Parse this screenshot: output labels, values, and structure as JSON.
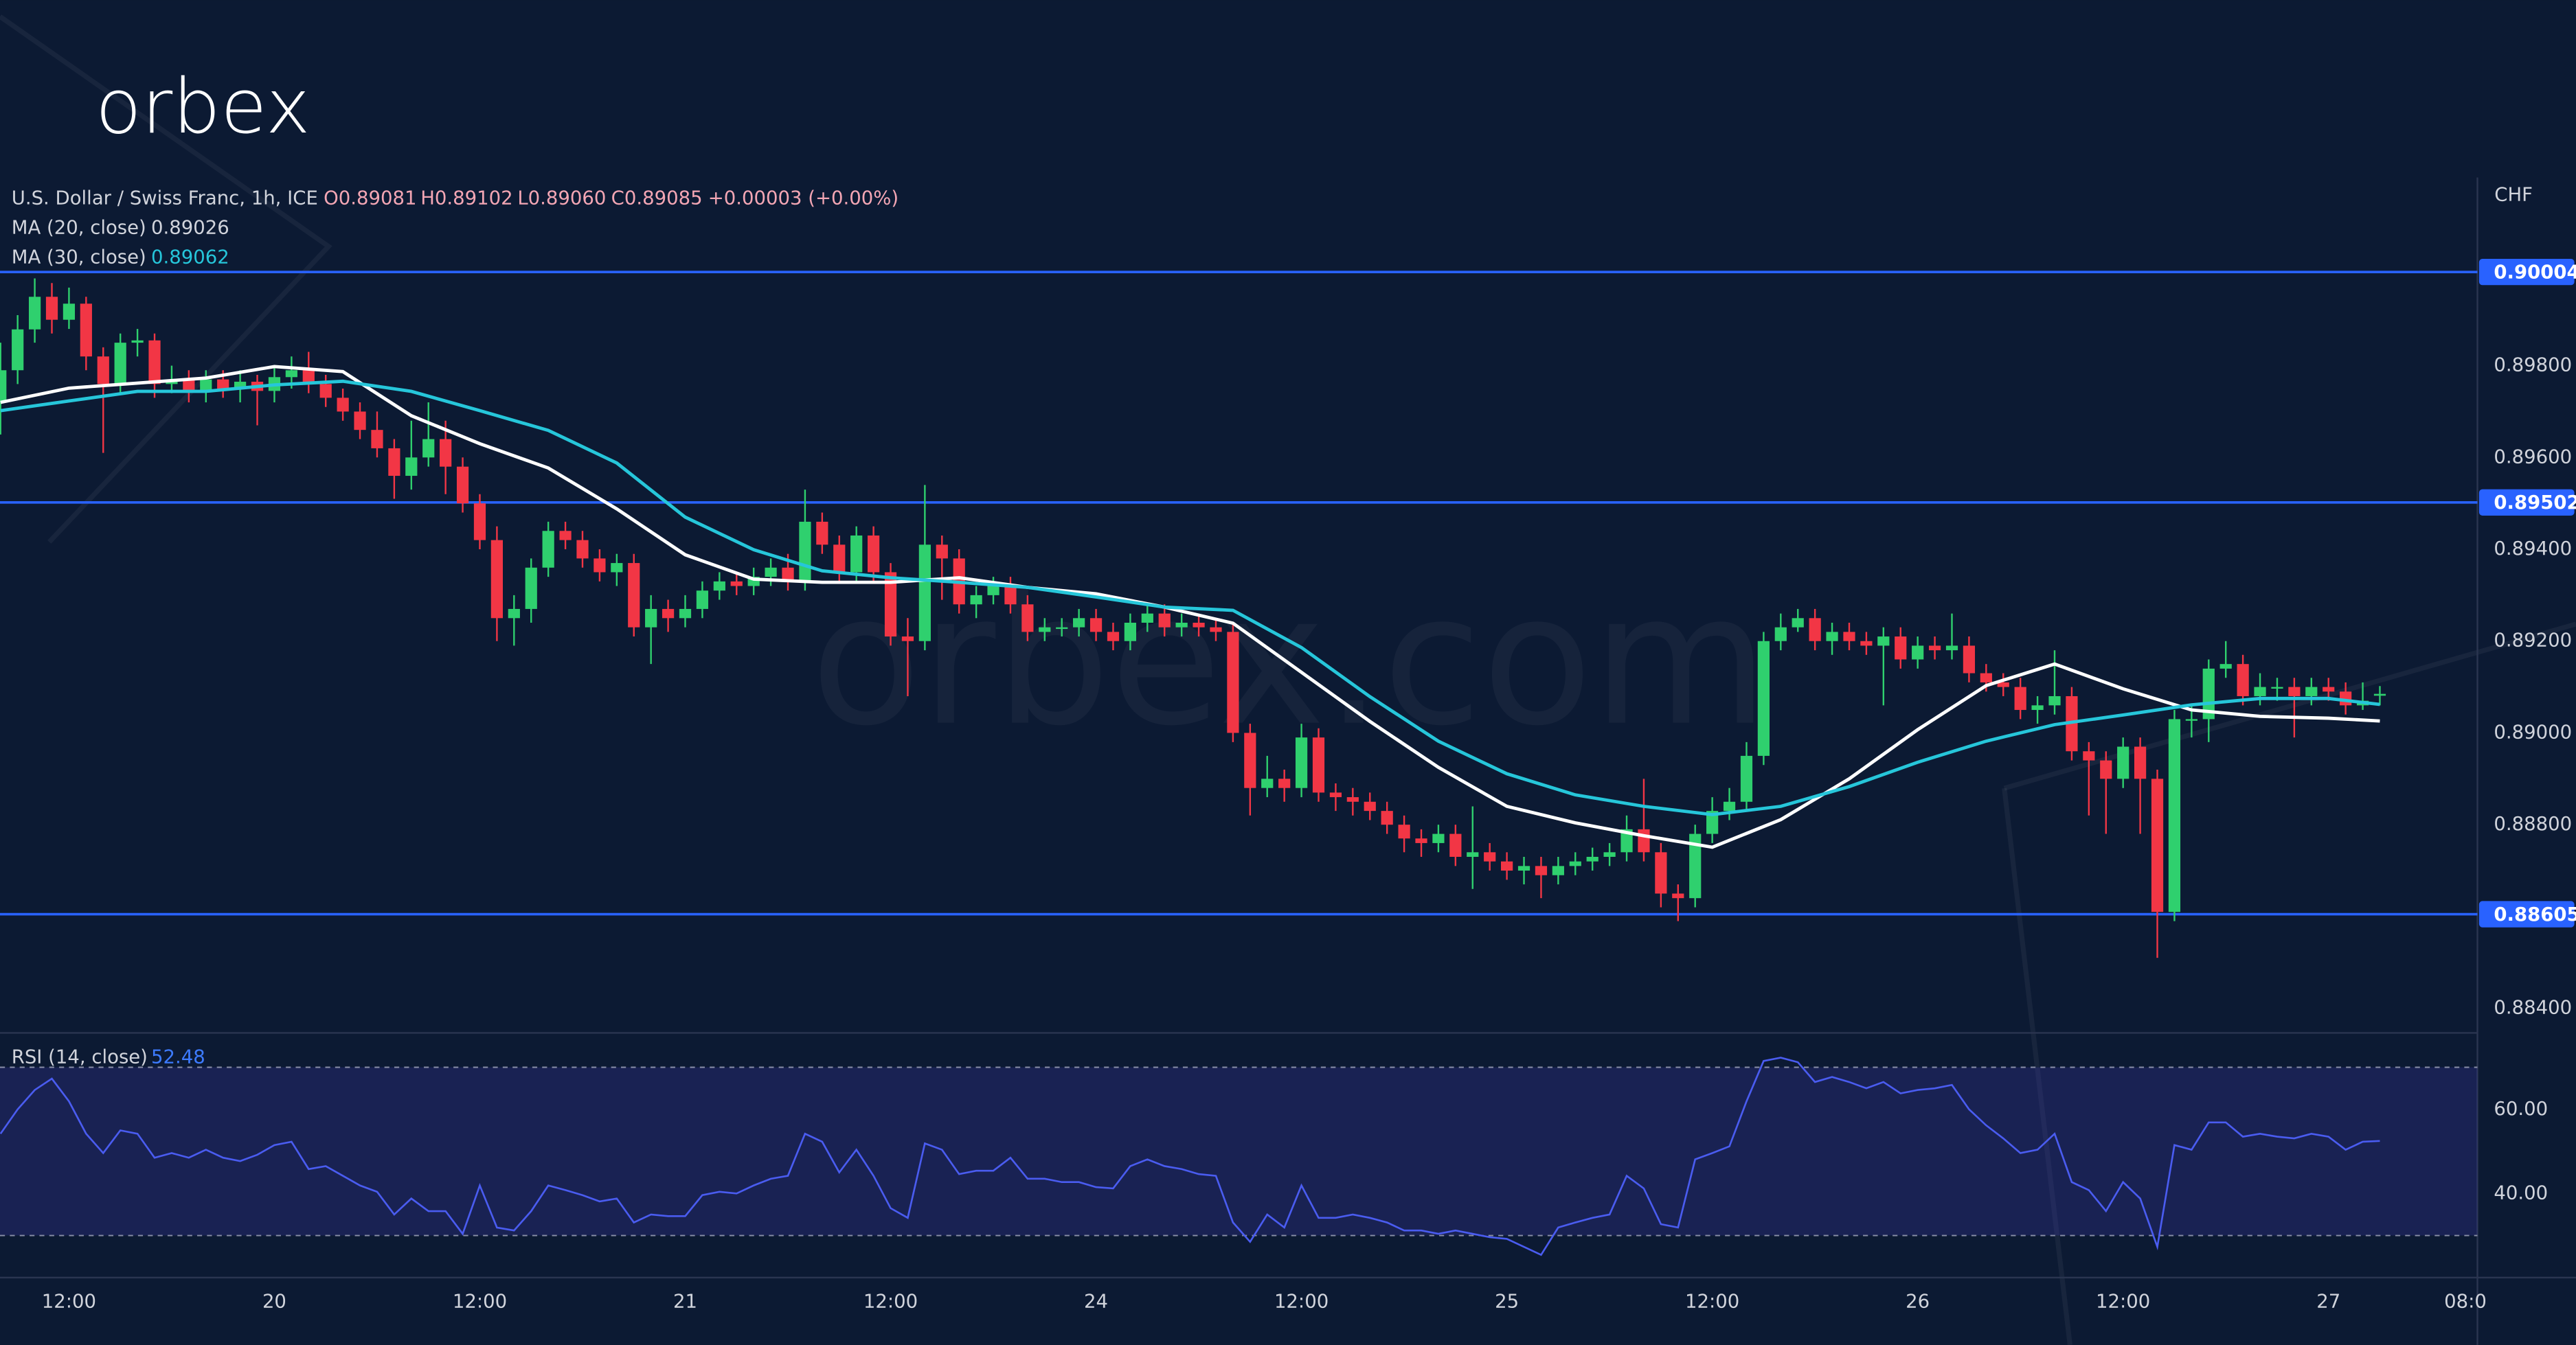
{
  "header": {
    "logo": "orbex",
    "watermark": "orbex.com"
  },
  "chart_data": {
    "type": "candlestick",
    "title": "U.S. Dollar / Swiss Franc, 1h, ICE",
    "ohlc_legend": [
      "O0.89081",
      "H0.89102",
      "L0.89060",
      "C0.89085",
      "+0.00003 (+0.00%)"
    ],
    "currency": "CHF",
    "up_color": "#2fd06e",
    "down_color": "#f23645",
    "xlim": [
      -0.03,
      144.7
    ],
    "xticks": [
      {
        "value": 4,
        "label": "12:00"
      },
      {
        "value": 16,
        "label": "20"
      },
      {
        "value": 28,
        "label": "12:00"
      },
      {
        "value": 40,
        "label": "21"
      },
      {
        "value": 52,
        "label": "12:00"
      },
      {
        "value": 64,
        "label": "24"
      },
      {
        "value": 76,
        "label": "12:00"
      },
      {
        "value": 88,
        "label": "25"
      },
      {
        "value": 100,
        "label": "12:00"
      },
      {
        "value": 112,
        "label": "26"
      },
      {
        "value": 124,
        "label": "12:00"
      },
      {
        "value": 136,
        "label": "27"
      },
      {
        "value": 144,
        "label": "08:0"
      }
    ],
    "ylim": [
      0.8835,
      0.9021
    ],
    "yticks": [
      {
        "value": 0.898,
        "label": "0.89800"
      },
      {
        "value": 0.896,
        "label": "0.89600"
      },
      {
        "value": 0.894,
        "label": "0.89400"
      },
      {
        "value": 0.892,
        "label": "0.89200"
      },
      {
        "value": 0.89,
        "label": "0.89000"
      },
      {
        "value": 0.888,
        "label": "0.88800"
      },
      {
        "value": 0.884,
        "label": "0.88400"
      }
    ],
    "levels": [
      {
        "value": 0.90004,
        "color": "#2962ff"
      },
      {
        "value": 0.89502,
        "color": "#2962ff"
      },
      {
        "value": 0.88605,
        "color": "#2962ff"
      }
    ],
    "open": [
      0.8972,
      0.8979,
      0.89879,
      0.8995,
      0.899,
      0.89935,
      0.8982,
      0.8976,
      0.8985,
      0.89855,
      0.8976,
      0.8977,
      0.89745,
      0.8977,
      0.8975,
      0.89765,
      0.89745,
      0.89775,
      0.8979,
      0.8976,
      0.8973,
      0.897,
      0.8966,
      0.8962,
      0.8956,
      0.896,
      0.8964,
      0.8958,
      0.895,
      0.8942,
      0.8925,
      0.8927,
      0.8936,
      0.8944,
      0.8942,
      0.8938,
      0.8935,
      0.8937,
      0.8923,
      0.8927,
      0.8925,
      0.8927,
      0.8931,
      0.8933,
      0.8932,
      0.8934,
      0.8936,
      0.8933,
      0.8946,
      0.8941,
      0.8935,
      0.8943,
      0.8935,
      0.8921,
      0.892,
      0.8941,
      0.8938,
      0.8928,
      0.893,
      0.8932,
      0.8928,
      0.8922,
      0.8923,
      0.8923,
      0.8925,
      0.8922,
      0.892,
      0.8924,
      0.8926,
      0.8923,
      0.8924,
      0.8923,
      0.8922,
      0.89,
      0.8888,
      0.889,
      0.8888,
      0.8899,
      0.8887,
      0.8886,
      0.8885,
      0.8883,
      0.888,
      0.8877,
      0.8876,
      0.8878,
      0.8873,
      0.8874,
      0.8872,
      0.887,
      0.8871,
      0.8869,
      0.8871,
      0.8872,
      0.8873,
      0.8874,
      0.8879,
      0.8874,
      0.8865,
      0.8864,
      0.8878,
      0.8883,
      0.8885,
      0.8895,
      0.892,
      0.8923,
      0.8925,
      0.892,
      0.8922,
      0.892,
      0.8919,
      0.8921,
      0.8916,
      0.8919,
      0.8918,
      0.8919,
      0.8913,
      0.8911,
      0.891,
      0.8905,
      0.8906,
      0.8908,
      0.8896,
      0.8894,
      0.889,
      0.8897,
      0.889,
      0.8861,
      0.8903,
      0.8903,
      0.8914,
      0.8915,
      0.8908,
      0.891,
      0.891,
      0.8908,
      0.891,
      0.8909,
      0.8906,
      0.89081
    ],
    "high": [
      0.8985,
      0.8991,
      0.8999,
      0.8998,
      0.8997,
      0.8995,
      0.8984,
      0.8987,
      0.8988,
      0.8987,
      0.898,
      0.8979,
      0.8979,
      0.8979,
      0.8979,
      0.8978,
      0.898,
      0.8982,
      0.8983,
      0.8978,
      0.8975,
      0.8972,
      0.897,
      0.8964,
      0.8968,
      0.8972,
      0.8968,
      0.896,
      0.8952,
      0.8945,
      0.893,
      0.8938,
      0.8946,
      0.8946,
      0.8944,
      0.894,
      0.8939,
      0.8939,
      0.893,
      0.8929,
      0.893,
      0.8933,
      0.8935,
      0.8935,
      0.8936,
      0.8938,
      0.8939,
      0.8953,
      0.8948,
      0.8943,
      0.8945,
      0.8945,
      0.8937,
      0.8925,
      0.8954,
      0.8943,
      0.894,
      0.8932,
      0.8934,
      0.8934,
      0.893,
      0.8925,
      0.8925,
      0.8927,
      0.8927,
      0.8924,
      0.8926,
      0.8928,
      0.8928,
      0.8926,
      0.8926,
      0.8925,
      0.8924,
      0.8902,
      0.8895,
      0.8892,
      0.8902,
      0.8901,
      0.8889,
      0.8888,
      0.8887,
      0.8885,
      0.8882,
      0.8879,
      0.888,
      0.888,
      0.8884,
      0.8876,
      0.8874,
      0.8873,
      0.8873,
      0.8873,
      0.8874,
      0.8875,
      0.8876,
      0.8882,
      0.889,
      0.8876,
      0.8867,
      0.888,
      0.8886,
      0.8888,
      0.8898,
      0.8922,
      0.8926,
      0.8927,
      0.8927,
      0.8924,
      0.8924,
      0.8922,
      0.8923,
      0.8923,
      0.8921,
      0.8921,
      0.8926,
      0.8921,
      0.8915,
      0.8913,
      0.8912,
      0.8908,
      0.8918,
      0.891,
      0.8898,
      0.8896,
      0.8899,
      0.8899,
      0.8892,
      0.8905,
      0.8906,
      0.8916,
      0.892,
      0.8917,
      0.8913,
      0.8912,
      0.8912,
      0.8912,
      0.8912,
      0.8911,
      0.8911,
      0.89102
    ],
    "low": [
      0.8965,
      0.8976,
      0.8985,
      0.8987,
      0.8988,
      0.8979,
      0.8961,
      0.8974,
      0.8982,
      0.8973,
      0.8974,
      0.8972,
      0.8972,
      0.8973,
      0.8972,
      0.8967,
      0.8972,
      0.8975,
      0.8974,
      0.8971,
      0.8968,
      0.8964,
      0.896,
      0.8951,
      0.8953,
      0.8958,
      0.8952,
      0.8948,
      0.894,
      0.892,
      0.8919,
      0.8924,
      0.8934,
      0.894,
      0.8936,
      0.8933,
      0.8932,
      0.8921,
      0.8915,
      0.8922,
      0.8923,
      0.8925,
      0.8929,
      0.893,
      0.893,
      0.8932,
      0.8931,
      0.8931,
      0.8939,
      0.8933,
      0.8933,
      0.8933,
      0.8919,
      0.8908,
      0.8918,
      0.8929,
      0.8926,
      0.8925,
      0.8928,
      0.8926,
      0.892,
      0.892,
      0.8921,
      0.8921,
      0.892,
      0.8918,
      0.8918,
      0.8922,
      0.8921,
      0.8921,
      0.8921,
      0.892,
      0.8898,
      0.8882,
      0.8886,
      0.8885,
      0.8886,
      0.8885,
      0.8883,
      0.8882,
      0.8881,
      0.8878,
      0.8874,
      0.8873,
      0.8874,
      0.8871,
      0.8866,
      0.887,
      0.8868,
      0.8867,
      0.8864,
      0.8867,
      0.8869,
      0.887,
      0.8871,
      0.8872,
      0.8872,
      0.8862,
      0.8859,
      0.8862,
      0.8876,
      0.8881,
      0.8883,
      0.8893,
      0.8918,
      0.8922,
      0.8918,
      0.8917,
      0.8918,
      0.8917,
      0.8906,
      0.8914,
      0.8914,
      0.8916,
      0.8916,
      0.8911,
      0.8909,
      0.8908,
      0.8903,
      0.8902,
      0.8904,
      0.8894,
      0.8882,
      0.8878,
      0.8888,
      0.8878,
      0.8851,
      0.8859,
      0.8899,
      0.8898,
      0.8912,
      0.8906,
      0.8906,
      0.8907,
      0.8899,
      0.8906,
      0.8907,
      0.8904,
      0.8905,
      0.8906
    ],
    "close": [
      0.8979,
      0.89879,
      0.8995,
      0.899,
      0.89935,
      0.8982,
      0.8976,
      0.8985,
      0.89855,
      0.8976,
      0.8977,
      0.89745,
      0.8977,
      0.8975,
      0.89765,
      0.89745,
      0.89775,
      0.8979,
      0.8976,
      0.8973,
      0.897,
      0.8966,
      0.8962,
      0.8956,
      0.896,
      0.8964,
      0.8958,
      0.895,
      0.8942,
      0.8925,
      0.8927,
      0.8936,
      0.8944,
      0.8942,
      0.8938,
      0.8935,
      0.8937,
      0.8923,
      0.8927,
      0.8925,
      0.8927,
      0.8931,
      0.8933,
      0.8932,
      0.8934,
      0.8936,
      0.8933,
      0.8946,
      0.8941,
      0.8935,
      0.8943,
      0.8935,
      0.8921,
      0.892,
      0.8941,
      0.8938,
      0.8928,
      0.893,
      0.8932,
      0.8928,
      0.8922,
      0.8923,
      0.8923,
      0.8925,
      0.8922,
      0.892,
      0.8924,
      0.8926,
      0.8923,
      0.8924,
      0.8923,
      0.8922,
      0.89,
      0.8888,
      0.889,
      0.8888,
      0.8899,
      0.8887,
      0.8886,
      0.8885,
      0.8883,
      0.888,
      0.8877,
      0.8876,
      0.8878,
      0.8873,
      0.8874,
      0.8872,
      0.887,
      0.8871,
      0.8869,
      0.8871,
      0.8872,
      0.8873,
      0.8874,
      0.8879,
      0.8874,
      0.8865,
      0.8864,
      0.8878,
      0.8883,
      0.8885,
      0.8895,
      0.892,
      0.8923,
      0.8925,
      0.892,
      0.8922,
      0.892,
      0.8919,
      0.8921,
      0.8916,
      0.8919,
      0.8918,
      0.8919,
      0.8913,
      0.8911,
      0.891,
      0.8905,
      0.8906,
      0.8908,
      0.8896,
      0.8894,
      0.889,
      0.8897,
      0.889,
      0.8861,
      0.8903,
      0.8903,
      0.8914,
      0.8915,
      0.8908,
      0.891,
      0.891,
      0.8908,
      0.891,
      0.8909,
      0.8906,
      0.8907,
      0.89085
    ],
    "series": [
      {
        "name": "MA (20, close)",
        "legend_value": "0.89026",
        "color": "#ffffff",
        "x": [
          0,
          4,
          8,
          12,
          16,
          20,
          24,
          28,
          32,
          36,
          40,
          44,
          48,
          52,
          56,
          60,
          64,
          68,
          72,
          76,
          80,
          84,
          88,
          92,
          96,
          100,
          104,
          108,
          112,
          116,
          120,
          124,
          128,
          132,
          136,
          139
        ],
        "values": [
          0.8972,
          0.89751,
          0.89762,
          0.89773,
          0.89798,
          0.89787,
          0.89691,
          0.8963,
          0.89577,
          0.89488,
          0.89388,
          0.89335,
          0.89328,
          0.89328,
          0.89338,
          0.89317,
          0.89303,
          0.89274,
          0.89239,
          0.89132,
          0.89025,
          0.88925,
          0.8884,
          0.88804,
          0.88776,
          0.88751,
          0.88811,
          0.889,
          0.89007,
          0.89103,
          0.8915,
          0.89096,
          0.8905,
          0.89036,
          0.89032,
          0.89026
        ]
      },
      {
        "name": "MA (30, close)",
        "legend_value": "0.89062",
        "color": "#26c6da",
        "x": [
          0,
          4,
          8,
          12,
          16,
          20,
          24,
          28,
          32,
          36,
          40,
          44,
          48,
          52,
          56,
          60,
          64,
          68,
          72,
          76,
          80,
          84,
          88,
          92,
          96,
          100,
          104,
          108,
          112,
          116,
          120,
          124,
          128,
          132,
          136,
          139
        ],
        "values": [
          0.89702,
          0.89723,
          0.89744,
          0.89744,
          0.89758,
          0.89766,
          0.89744,
          0.89702,
          0.89659,
          0.89588,
          0.8947,
          0.89399,
          0.89353,
          0.89338,
          0.89328,
          0.89317,
          0.89296,
          0.89274,
          0.89267,
          0.89186,
          0.89079,
          0.88982,
          0.88911,
          0.88865,
          0.8884,
          0.88822,
          0.8884,
          0.88883,
          0.88936,
          0.88982,
          0.89018,
          0.89039,
          0.89061,
          0.89075,
          0.89075,
          0.89062
        ]
      }
    ],
    "rsi": {
      "name": "RSI (14, close)",
      "legend_value": "52.48",
      "color": "#4a5cf0",
      "ylim": [
        20,
        77
      ],
      "yticks": [
        {
          "value": 60,
          "label": "60.00"
        },
        {
          "value": 40,
          "label": "40.00"
        }
      ],
      "bands": [
        70,
        30
      ],
      "values": [
        54.2,
        60.0,
        64.6,
        67.3,
        61.9,
        54.2,
        49.6,
        55.0,
        54.2,
        48.5,
        49.6,
        48.5,
        50.4,
        48.5,
        47.7,
        49.2,
        51.5,
        52.3,
        45.8,
        46.5,
        44.2,
        41.9,
        40.4,
        35.0,
        38.8,
        35.8,
        35.8,
        30.4,
        41.9,
        31.9,
        31.2,
        35.8,
        41.9,
        40.8,
        39.6,
        38.1,
        38.8,
        33.1,
        35.0,
        34.6,
        34.6,
        39.6,
        40.4,
        40.0,
        41.9,
        43.5,
        44.2,
        54.2,
        52.3,
        45.0,
        50.4,
        44.2,
        36.5,
        34.2,
        51.9,
        50.4,
        44.6,
        45.4,
        45.4,
        48.5,
        43.5,
        43.5,
        42.7,
        42.7,
        41.5,
        41.2,
        46.5,
        48.1,
        46.5,
        45.8,
        44.6,
        44.2,
        33.1,
        28.5,
        35.0,
        31.9,
        41.9,
        34.2,
        34.2,
        35.0,
        34.2,
        33.1,
        31.2,
        31.2,
        30.4,
        31.2,
        30.4,
        29.6,
        29.2,
        27.3,
        25.4,
        31.9,
        33.1,
        34.2,
        35.0,
        44.2,
        41.2,
        32.7,
        31.9,
        48.1,
        49.6,
        51.2,
        61.9,
        71.5,
        72.3,
        71.2,
        66.5,
        67.7,
        66.5,
        65.0,
        66.5,
        63.8,
        64.6,
        65.0,
        65.8,
        60.0,
        56.2,
        53.1,
        49.6,
        50.4,
        54.2,
        42.7,
        40.8,
        35.8,
        42.7,
        38.8,
        27.3,
        51.5,
        50.4,
        56.9,
        56.9,
        53.5,
        54.2,
        53.5,
        53.1,
        54.2,
        53.5,
        50.4,
        52.3,
        52.48
      ]
    }
  }
}
